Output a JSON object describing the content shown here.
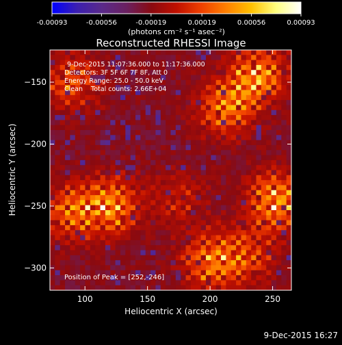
{
  "colorbar": {
    "tick_labels": [
      "-0.00093",
      "-0.00056",
      "-0.00019",
      "0.00019",
      "0.00056",
      "0.00093"
    ],
    "range": [
      -0.00093,
      0.00093
    ],
    "units_label": "(photons cm⁻² s⁻¹ asec⁻²)",
    "colors": [
      "#0000ff",
      "#3b1fb0",
      "#5a2a8a",
      "#6a2060",
      "#8a0a10",
      "#c01000",
      "#f04000",
      "#ff8000",
      "#ffc000",
      "#ffff80",
      "#ffffff"
    ]
  },
  "chart_data": {
    "type": "heatmap",
    "title": "Reconstructed RHESSI Image",
    "xlabel": "Heliocentric X (arcsec)",
    "ylabel": "Heliocentric Y (arcsec)",
    "xlim": [
      72,
      265
    ],
    "ylim": [
      -318,
      -124
    ],
    "x_ticks": [
      100,
      150,
      200,
      250
    ],
    "y_ticks": [
      -150,
      -200,
      -250,
      -300
    ],
    "x_tick_labels": [
      "100",
      "150",
      "200",
      "250"
    ],
    "y_tick_labels": [
      "−150",
      "−200",
      "−250",
      "−300"
    ],
    "annotations": [
      "9-Dec-2015 11:07:36.000 to 11:17:36.000",
      "Detectors: 3F 5F 6F 7F 8F, Att 0",
      "Energy Range: 25.0 - 50.0 keV",
      "Clean    Total counts: 2.66E+04"
    ],
    "peak_label": "Position of Peak = [252,-246]",
    "bright_sources": [
      {
        "x": 238,
        "y": -145,
        "intensity": 0.95
      },
      {
        "x": 213,
        "y": -170,
        "intensity": 0.8
      },
      {
        "x": 90,
        "y": -150,
        "intensity": 0.65
      },
      {
        "x": 120,
        "y": -250,
        "intensity": 0.95
      },
      {
        "x": 88,
        "y": -255,
        "intensity": 0.7
      },
      {
        "x": 252,
        "y": -246,
        "intensity": 1.0
      },
      {
        "x": 200,
        "y": -295,
        "intensity": 0.8
      },
      {
        "x": 230,
        "y": -290,
        "intensity": 0.6
      },
      {
        "x": 175,
        "y": -245,
        "intensity": 0.35
      }
    ]
  },
  "footer": {
    "timestamp": "9-Dec-2015 16:27"
  }
}
